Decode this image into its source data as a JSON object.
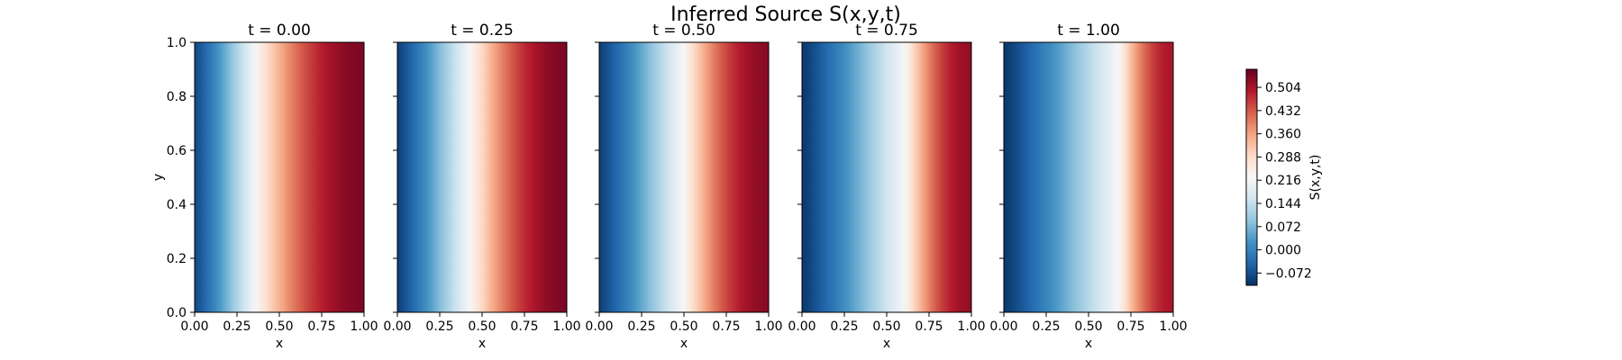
{
  "title": "Inferred Source S(x,y,t)",
  "chart_data": {
    "type": "heatmap",
    "title": "Inferred Source S(x,y,t)",
    "xlabel": "x",
    "ylabel": "y",
    "xlim": [
      0.0,
      1.0
    ],
    "ylim": [
      0.0,
      1.0
    ],
    "x_ticks": [
      "0.00",
      "0.25",
      "0.50",
      "0.75",
      "1.00"
    ],
    "x_tick_values": [
      0.0,
      0.25,
      0.5,
      0.75,
      1.0
    ],
    "y_ticks": [
      "0.0",
      "0.2",
      "0.4",
      "0.6",
      "0.8",
      "1.0"
    ],
    "y_tick_values": [
      0.0,
      0.2,
      0.4,
      0.6,
      0.8,
      1.0
    ],
    "colormap": "RdBu_r",
    "colors": {
      "low": "#053061",
      "mid": "#f7f7f7",
      "high": "#67001f"
    },
    "colorbar": {
      "label": "S(x,y,t)",
      "ticks": [
        "−0.072",
        "0.000",
        "0.072",
        "0.144",
        "0.216",
        "0.288",
        "0.360",
        "0.432",
        "0.504"
      ],
      "tick_values": [
        -0.072,
        0.0,
        0.072,
        0.144,
        0.216,
        0.288,
        0.36,
        0.432,
        0.504
      ],
      "range": [
        -0.11,
        0.56
      ]
    },
    "panels": [
      {
        "title": "t = 0.00",
        "t": 0.0,
        "white_x": 0.36,
        "x_values": [
          0.0,
          0.25,
          0.5,
          0.75,
          1.0
        ],
        "s_values": [
          -0.08,
          0.14,
          0.38,
          0.49,
          0.54
        ]
      },
      {
        "title": "t = 0.25",
        "t": 0.25,
        "white_x": 0.43,
        "x_values": [
          0.0,
          0.25,
          0.5,
          0.75,
          1.0
        ],
        "s_values": [
          -0.09,
          0.08,
          0.32,
          0.47,
          0.54
        ]
      },
      {
        "title": "t = 0.50",
        "t": 0.5,
        "white_x": 0.5,
        "x_values": [
          0.0,
          0.25,
          0.5,
          0.75,
          1.0
        ],
        "s_values": [
          -0.09,
          0.02,
          0.22,
          0.43,
          0.53
        ]
      },
      {
        "title": "t = 0.75",
        "t": 0.75,
        "white_x": 0.61,
        "x_values": [
          0.0,
          0.25,
          0.5,
          0.75,
          1.0
        ],
        "s_values": [
          -0.1,
          -0.02,
          0.12,
          0.38,
          0.52
        ]
      },
      {
        "title": "t = 1.00",
        "t": 1.0,
        "white_x": 0.68,
        "x_values": [
          0.0,
          0.25,
          0.5,
          0.75,
          1.0
        ],
        "s_values": [
          -0.1,
          -0.04,
          0.06,
          0.31,
          0.5
        ]
      }
    ]
  }
}
